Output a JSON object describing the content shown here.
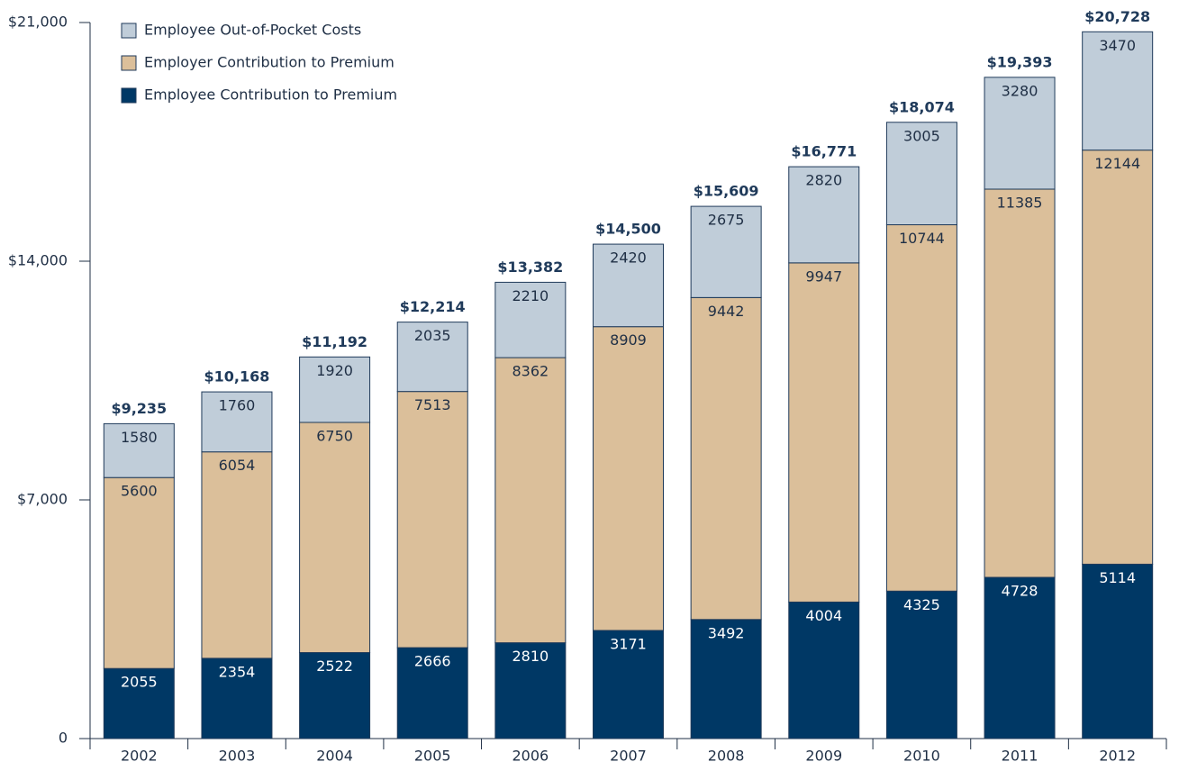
{
  "chart_data": {
    "type": "stacked-bar",
    "categories": [
      "2002",
      "2003",
      "2004",
      "2005",
      "2006",
      "2007",
      "2008",
      "2009",
      "2010",
      "2011",
      "2012"
    ],
    "series": [
      {
        "name": "Employee Contribution to Premium",
        "color": "#003865",
        "values": [
          2055,
          2354,
          2522,
          2666,
          2810,
          3171,
          3492,
          4004,
          4325,
          4728,
          5114
        ]
      },
      {
        "name": "Employer Contribution to Premium",
        "color": "#dbbf9a",
        "values": [
          5600,
          6054,
          6750,
          7513,
          8362,
          8909,
          9442,
          9947,
          10744,
          11385,
          12144
        ]
      },
      {
        "name": "Employee Out-of-Pocket Costs",
        "color": "#c0cdd9",
        "values": [
          1580,
          1760,
          1920,
          2035,
          2210,
          2420,
          2675,
          2820,
          3005,
          3280,
          3470
        ]
      }
    ],
    "totals": [
      9235,
      10168,
      11192,
      12214,
      13382,
      14500,
      15609,
      16771,
      18074,
      19393,
      20728
    ],
    "total_labels": [
      "$9,235",
      "$10,168",
      "$11,192",
      "$12,214",
      "$13,382",
      "$14,500",
      "$15,609",
      "$16,771",
      "$18,074",
      "$19,393",
      "$20,728"
    ],
    "ylim": [
      0,
      21000
    ],
    "yticks": [
      0,
      {
        "value": 7000,
        "label": "$7,000"
      },
      {
        "value": 14000,
        "label": "$14,000"
      },
      {
        "value": 21000,
        "label": "$21,000"
      }
    ],
    "legend": "upper left"
  }
}
